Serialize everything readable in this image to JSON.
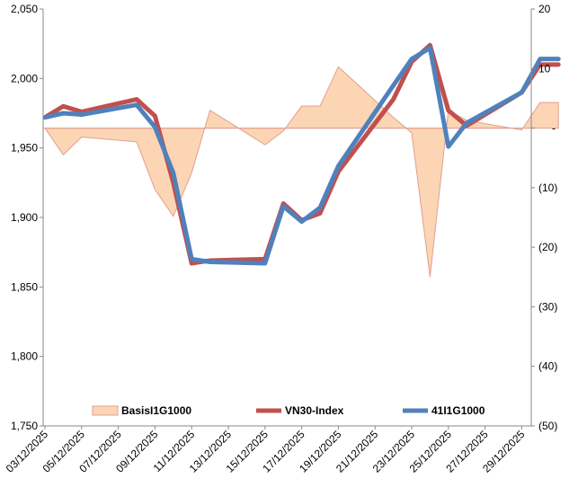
{
  "chart_data": {
    "type": "line",
    "title": "",
    "xlabel": "",
    "ylabel": "",
    "ylim": [
      1750,
      2050
    ],
    "y_ticks": [
      "1,750",
      "1,800",
      "1,850",
      "1,900",
      "1,950",
      "2,000",
      "2,050"
    ],
    "y2lim": [
      -50,
      20
    ],
    "y2_ticks": [
      "(50)",
      "(40)",
      "(30)",
      "(20)",
      "(10)",
      "-",
      "10",
      "20"
    ],
    "x": [
      "03/12/2025",
      "04/12/2025",
      "05/12/2025",
      "08/12/2025",
      "09/12/2025",
      "10/12/2025",
      "11/12/2025",
      "12/12/2025",
      "15/12/2025",
      "16/12/2025",
      "17/12/2025",
      "18/12/2025",
      "19/12/2025",
      "22/12/2025",
      "23/12/2025",
      "24/12/2025",
      "25/12/2025",
      "26/12/2025",
      "29/12/2025",
      "30/12/2025",
      "31/12/2025"
    ],
    "x_tick_labels": [
      "03/12/2025",
      "05/12/2025",
      "07/12/2025",
      "09/12/2025",
      "11/12/2025",
      "13/12/2025",
      "15/12/2025",
      "17/12/2025",
      "19/12/2025",
      "21/12/2025",
      "23/12/2025",
      "25/12/2025",
      "27/12/2025",
      "29/12/2025"
    ],
    "legend_position": "bottom",
    "series": [
      {
        "name": "BasisI1G1000",
        "type": "area",
        "axis": "secondary",
        "color": "#FCD5B5",
        "stroke": "#E0A090",
        "values": [
          0,
          -4.5,
          -1.5,
          -2.3,
          -10.3,
          -14.8,
          -7.5,
          3,
          -2.8,
          -0.5,
          3.7,
          3.7,
          10.3,
          1.8,
          -0.8,
          -25,
          3,
          1.3,
          -0.3,
          4.3,
          4.3
        ]
      },
      {
        "name": "VN30-Index",
        "type": "line",
        "axis": "primary",
        "color": "#C0504D",
        "values": [
          1972,
          1980,
          1976,
          1985,
          1973,
          1925,
          1867,
          1869,
          1870,
          1910,
          1898,
          1903,
          1933,
          1985,
          2012,
          2024,
          1977,
          1966,
          1990,
          2010,
          2010
        ]
      },
      {
        "name": "41I1G1000",
        "type": "line",
        "axis": "primary",
        "color": "#4F81BD",
        "values": [
          1972,
          1975,
          1974,
          1981,
          1965,
          1932,
          1870,
          1868,
          1867,
          1908,
          1897,
          1907,
          1937,
          1995,
          2014,
          2022,
          1951,
          1968,
          1990,
          2014,
          2014
        ]
      }
    ]
  }
}
